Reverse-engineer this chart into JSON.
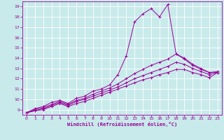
{
  "xlabel": "Windchill (Refroidissement éolien,°C)",
  "bg_color": "#c8eaea",
  "line_color": "#990099",
  "grid_color": "#ffffff",
  "xlim": [
    -0.5,
    23.5
  ],
  "ylim": [
    8.5,
    19.5
  ],
  "xticks": [
    0,
    1,
    2,
    3,
    4,
    5,
    6,
    7,
    8,
    9,
    10,
    11,
    12,
    13,
    14,
    15,
    16,
    17,
    18,
    19,
    20,
    21,
    22,
    23
  ],
  "yticks": [
    9,
    10,
    11,
    12,
    13,
    14,
    15,
    16,
    17,
    18,
    19
  ],
  "line1_x": [
    0,
    1,
    2,
    3,
    4,
    5,
    6,
    7,
    8,
    9,
    10,
    11,
    12,
    13,
    14,
    15,
    16,
    17,
    18,
    19,
    20,
    21,
    22,
    23
  ],
  "line1_y": [
    8.7,
    9.1,
    9.3,
    9.7,
    9.9,
    9.6,
    10.1,
    10.3,
    10.8,
    11.0,
    11.4,
    12.4,
    14.2,
    17.5,
    18.3,
    18.8,
    18.0,
    19.2,
    14.4,
    13.9,
    13.3,
    12.9,
    12.6,
    12.7
  ],
  "line2_x": [
    0,
    1,
    2,
    3,
    4,
    5,
    6,
    7,
    8,
    9,
    10,
    11,
    12,
    13,
    14,
    15,
    16,
    17,
    18,
    19,
    20,
    21,
    22,
    23
  ],
  "line2_y": [
    8.7,
    9.0,
    9.2,
    9.5,
    9.8,
    9.5,
    9.9,
    10.1,
    10.5,
    10.8,
    11.1,
    11.5,
    12.0,
    12.5,
    12.9,
    13.3,
    13.6,
    13.9,
    14.4,
    14.0,
    13.4,
    13.0,
    12.6,
    12.6
  ],
  "line3_x": [
    0,
    1,
    2,
    3,
    4,
    5,
    6,
    7,
    8,
    9,
    10,
    11,
    12,
    13,
    14,
    15,
    16,
    17,
    18,
    19,
    20,
    21,
    22,
    23
  ],
  "line3_y": [
    8.7,
    8.9,
    9.1,
    9.4,
    9.7,
    9.4,
    9.8,
    10.0,
    10.3,
    10.6,
    10.9,
    11.2,
    11.6,
    12.0,
    12.3,
    12.6,
    12.9,
    13.2,
    13.6,
    13.4,
    13.0,
    12.7,
    12.4,
    12.6
  ],
  "line4_x": [
    0,
    1,
    2,
    3,
    4,
    5,
    6,
    7,
    8,
    9,
    10,
    11,
    12,
    13,
    14,
    15,
    16,
    17,
    18,
    19,
    20,
    21,
    22,
    23
  ],
  "line4_y": [
    8.7,
    8.9,
    9.0,
    9.3,
    9.6,
    9.3,
    9.6,
    9.8,
    10.1,
    10.4,
    10.7,
    11.0,
    11.3,
    11.6,
    11.9,
    12.1,
    12.4,
    12.6,
    12.9,
    12.9,
    12.6,
    12.4,
    12.1,
    12.6
  ]
}
